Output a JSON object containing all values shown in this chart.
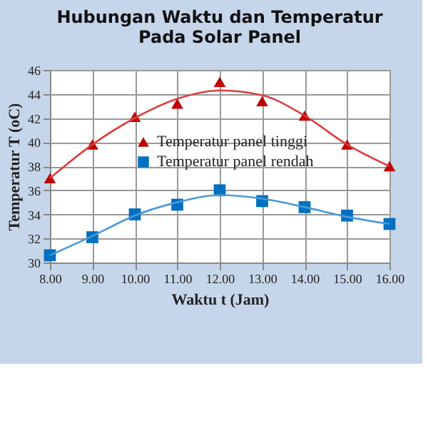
{
  "chart_data": {
    "type": "scatter",
    "title": "Hubungan Waktu dan Temperatur Pada Solar Panel",
    "xlabel": "Waktu t (Jam)",
    "ylabel": "Temperatur T (oC)",
    "x": [
      8,
      9,
      10,
      11,
      12,
      13,
      14,
      15,
      16
    ],
    "xlim": [
      8,
      16
    ],
    "ylim": [
      30,
      46
    ],
    "xticks": [
      {
        "value": 8,
        "label": "8.00"
      },
      {
        "value": 9,
        "label": "9.00"
      },
      {
        "value": 10,
        "label": "10.00"
      },
      {
        "value": 11,
        "label": "11.00"
      },
      {
        "value": 12,
        "label": "12.00"
      },
      {
        "value": 13,
        "label": "13.00"
      },
      {
        "value": 14,
        "label": "14.00"
      },
      {
        "value": 15,
        "label": "15.00"
      },
      {
        "value": 16,
        "label": "16.00"
      }
    ],
    "yticks": [
      30,
      32,
      34,
      36,
      38,
      40,
      42,
      44,
      46
    ],
    "grid": true,
    "legend": "center",
    "series": [
      {
        "name": "Temperatur panel tinggi",
        "color": "#c00000",
        "marker": "triangle",
        "values": [
          37,
          39.8,
          42.1,
          43.2,
          45,
          43.4,
          42.2,
          39.8,
          38
        ]
      },
      {
        "name": "Temperatur panel rendah",
        "color": "#0070c0",
        "marker": "square",
        "values": [
          30.6,
          32.1,
          34,
          34.8,
          36,
          35.1,
          34.6,
          33.9,
          33.2
        ]
      },
      {
        "type": "line",
        "color": "#d94040",
        "marker": "none",
        "line_style": "solid",
        "x": [
          8,
          9,
          10,
          11,
          12,
          13,
          14,
          15,
          16
        ],
        "values": [
          37,
          39.8,
          42,
          43.6,
          44.3,
          43.9,
          42.2,
          39.8,
          38
        ]
      },
      {
        "type": "line",
        "color": "#4a9ad8",
        "marker": "none",
        "line_style": "solid",
        "x": [
          8,
          9,
          10,
          11,
          12,
          13,
          14,
          15,
          16
        ],
        "values": [
          30.6,
          32.2,
          33.9,
          35,
          35.6,
          35.3,
          34.6,
          33.8,
          33.2
        ]
      }
    ]
  }
}
